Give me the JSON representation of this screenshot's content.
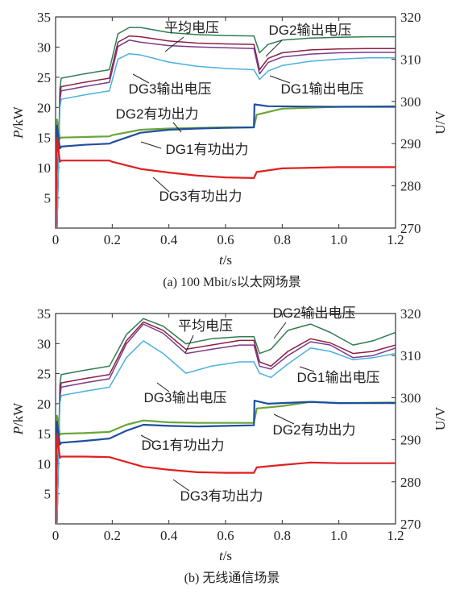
{
  "chart_data": [
    {
      "type": "line",
      "title": "",
      "caption": "(a) 100 Mbit/s以太网场景",
      "xlabel": "t/s",
      "xlabel_var": "t",
      "xlabel_unit": "/s",
      "ylabel_left": "P/kW",
      "ylabel_left_var": "P",
      "ylabel_left_unit": "/kW",
      "ylabel_right": "U/V",
      "xlim": [
        0,
        1.2
      ],
      "ylim_left": [
        0,
        35
      ],
      "ylim_right": [
        270,
        320
      ],
      "xticks": [
        "0",
        "0.2",
        "0.4",
        "0.6",
        "0.8",
        "1.0",
        "1.2"
      ],
      "yticks_left": [
        "5",
        "10",
        "15",
        "20",
        "25",
        "30",
        "35"
      ],
      "yticks_right": [
        "270",
        "280",
        "290",
        "300",
        "310",
        "320"
      ],
      "grid": false,
      "series": [
        {
          "name": "DG2输出电压",
          "axis": "right",
          "color": "#2e7d4f",
          "x": [
            0.005,
            0.015,
            0.02,
            0.1,
            0.19,
            0.22,
            0.26,
            0.3,
            0.4,
            0.5,
            0.6,
            0.7,
            0.72,
            0.75,
            0.8,
            0.9,
            1.0,
            1.1,
            1.2
          ],
          "y": [
            270,
            303,
            305.5,
            306.5,
            307.5,
            316,
            317.5,
            317.5,
            316.3,
            315.8,
            315.6,
            315.5,
            311.5,
            313.5,
            314.5,
            315,
            315.2,
            315.3,
            315.3
          ]
        },
        {
          "name": "平均电压",
          "axis": "right",
          "color": "#8c2040",
          "x": [
            0.005,
            0.015,
            0.02,
            0.1,
            0.19,
            0.22,
            0.26,
            0.3,
            0.4,
            0.5,
            0.6,
            0.7,
            0.72,
            0.75,
            0.8,
            0.9,
            1.0,
            1.1,
            1.2
          ],
          "y": [
            270,
            301,
            303.5,
            304.5,
            305.5,
            314,
            315.5,
            315.3,
            314.3,
            313.8,
            313.6,
            313.5,
            307.5,
            310.2,
            311.5,
            312.2,
            312.4,
            312.5,
            312.5
          ]
        },
        {
          "name": "DG1输出电压",
          "axis": "right",
          "color": "#7a3a8c",
          "x": [
            0.005,
            0.015,
            0.02,
            0.1,
            0.19,
            0.22,
            0.26,
            0.3,
            0.4,
            0.5,
            0.6,
            0.7,
            0.72,
            0.75,
            0.8,
            0.9,
            1.0,
            1.1,
            1.2
          ],
          "y": [
            270,
            300,
            302.5,
            303.5,
            304.5,
            313,
            314.5,
            314,
            313.2,
            312.9,
            312.7,
            312.5,
            306.5,
            309.2,
            310.5,
            311.2,
            311.5,
            311.6,
            311.6
          ]
        },
        {
          "name": "DG3输出电压",
          "axis": "right",
          "color": "#4ab0de",
          "x": [
            0.005,
            0.015,
            0.02,
            0.1,
            0.19,
            0.22,
            0.26,
            0.3,
            0.4,
            0.5,
            0.6,
            0.7,
            0.72,
            0.75,
            0.8,
            0.9,
            1.0,
            1.1,
            1.2
          ],
          "y": [
            270,
            298.5,
            300.5,
            301.5,
            302.5,
            310,
            311.3,
            311,
            309.3,
            308.3,
            307.8,
            307.5,
            305.2,
            307.2,
            308.5,
            309.5,
            310,
            310.3,
            310.3
          ]
        },
        {
          "name": "DG2有功出力",
          "axis": "left",
          "color": "#6aa53a",
          "x": [
            0,
            0.005,
            0.015,
            0.02,
            0.1,
            0.19,
            0.2,
            0.3,
            0.4,
            0.5,
            0.6,
            0.7,
            0.71,
            0.8,
            1.0,
            1.2
          ],
          "y": [
            0,
            18,
            14.8,
            15,
            15.1,
            15.2,
            15.4,
            16.3,
            16.5,
            16.6,
            16.7,
            16.7,
            18.8,
            19.8,
            20.1,
            20.2
          ]
        },
        {
          "name": "DG1有功出力",
          "axis": "left",
          "color": "#1e4f9e",
          "x": [
            0,
            0.005,
            0.015,
            0.02,
            0.1,
            0.19,
            0.2,
            0.3,
            0.4,
            0.5,
            0.6,
            0.7,
            0.702,
            0.75,
            1.0,
            1.2
          ],
          "y": [
            0,
            17,
            13.2,
            13.5,
            13.8,
            14,
            14.2,
            15.8,
            16.3,
            16.5,
            16.6,
            16.7,
            20.5,
            20.2,
            20.1,
            20.1
          ]
        },
        {
          "name": "DG3有功出力",
          "axis": "left",
          "color": "#e02020",
          "x": [
            0,
            0.005,
            0.015,
            0.02,
            0.1,
            0.19,
            0.2,
            0.3,
            0.4,
            0.5,
            0.6,
            0.7,
            0.71,
            0.8,
            1.0,
            1.2
          ],
          "y": [
            0,
            15,
            11,
            11.2,
            11.2,
            11.2,
            11,
            9.8,
            9.2,
            8.7,
            8.4,
            8.3,
            9.3,
            9.9,
            10.1,
            10.1
          ]
        }
      ],
      "annotations": [
        "平均电压",
        "DG2输出电压",
        "DG3输出电压",
        "DG1输出电压",
        "DG2有功出力",
        "DG1有功出力",
        "DG3有功出力"
      ]
    },
    {
      "type": "line",
      "title": "",
      "caption": "(b) 无线通信场景",
      "xlabel": "t/s",
      "xlabel_var": "t",
      "xlabel_unit": "/s",
      "ylabel_left": "P/kW",
      "ylabel_left_var": "P",
      "ylabel_left_unit": "/kW",
      "ylabel_right": "U/V",
      "xlim": [
        0,
        1.2
      ],
      "ylim_left": [
        0,
        35
      ],
      "ylim_right": [
        270,
        320
      ],
      "xticks": [
        "0",
        "0.2",
        "0.4",
        "0.6",
        "0.8",
        "1.0",
        "1.2"
      ],
      "yticks_left": [
        "5",
        "10",
        "15",
        "20",
        "25",
        "30",
        "35"
      ],
      "yticks_right": [
        "270",
        "280",
        "290",
        "300",
        "310",
        "320"
      ],
      "grid": false,
      "series": [
        {
          "name": "DG2输出电压",
          "axis": "right",
          "color": "#2e7d4f",
          "x": [
            0.005,
            0.015,
            0.02,
            0.1,
            0.19,
            0.25,
            0.31,
            0.38,
            0.46,
            0.55,
            0.65,
            0.7,
            0.72,
            0.76,
            0.82,
            0.9,
            0.97,
            1.05,
            1.12,
            1.2
          ],
          "y": [
            270,
            303,
            305.5,
            306.5,
            307.5,
            315,
            318.8,
            317,
            312.8,
            314,
            314.5,
            314.5,
            310.5,
            311.5,
            316,
            317.5,
            315.5,
            312.5,
            313.5,
            315.5
          ]
        },
        {
          "name": "平均电压",
          "axis": "right",
          "color": "#8c2040",
          "x": [
            0.005,
            0.015,
            0.02,
            0.1,
            0.19,
            0.25,
            0.31,
            0.38,
            0.46,
            0.55,
            0.65,
            0.7,
            0.72,
            0.76,
            0.82,
            0.9,
            0.97,
            1.05,
            1.12,
            1.2
          ],
          "y": [
            270,
            301,
            303.5,
            304.5,
            305.5,
            313.5,
            318,
            316,
            311.5,
            312.5,
            313.6,
            313.6,
            308.5,
            307.5,
            311,
            314,
            313,
            310.5,
            311,
            312.5
          ]
        },
        {
          "name": "DG1输出电压",
          "axis": "right",
          "color": "#7a3a8c",
          "x": [
            0.005,
            0.015,
            0.02,
            0.1,
            0.19,
            0.25,
            0.31,
            0.38,
            0.46,
            0.55,
            0.65,
            0.7,
            0.72,
            0.76,
            0.82,
            0.9,
            0.97,
            1.05,
            1.12,
            1.2
          ],
          "y": [
            270,
            300,
            302.5,
            303.5,
            304.5,
            312.8,
            317.5,
            315.3,
            310.5,
            311.5,
            312.5,
            312.5,
            307.5,
            306.8,
            310,
            313.3,
            312.5,
            309.5,
            310,
            311.8
          ]
        },
        {
          "name": "DG3输出电压",
          "axis": "right",
          "color": "#4ab0de",
          "x": [
            0.005,
            0.015,
            0.02,
            0.1,
            0.19,
            0.25,
            0.31,
            0.38,
            0.46,
            0.55,
            0.65,
            0.7,
            0.72,
            0.76,
            0.82,
            0.9,
            0.97,
            1.05,
            1.12,
            1.2
          ],
          "y": [
            270,
            298.5,
            300.5,
            301.5,
            302.5,
            309.5,
            313.5,
            310.5,
            305.8,
            307.5,
            308.5,
            308.5,
            305.8,
            304.8,
            308,
            311.8,
            311,
            309,
            309.5,
            310.5
          ]
        },
        {
          "name": "DG2有功出力",
          "axis": "left",
          "color": "#6aa53a",
          "x": [
            0,
            0.005,
            0.015,
            0.02,
            0.1,
            0.19,
            0.25,
            0.31,
            0.4,
            0.5,
            0.6,
            0.7,
            0.71,
            0.8,
            0.9,
            1.0,
            1.2
          ],
          "y": [
            0,
            18,
            14.8,
            15,
            15.1,
            15.3,
            16.5,
            17.2,
            16.9,
            16.8,
            16.8,
            16.8,
            19.2,
            19.6,
            20.3,
            20.1,
            20.2
          ]
        },
        {
          "name": "DG1有功出力",
          "axis": "left",
          "color": "#1e4f9e",
          "x": [
            0,
            0.005,
            0.015,
            0.02,
            0.1,
            0.19,
            0.25,
            0.31,
            0.4,
            0.5,
            0.6,
            0.7,
            0.702,
            0.75,
            0.9,
            1.0,
            1.2
          ],
          "y": [
            0,
            17,
            13.2,
            13.5,
            13.8,
            14.2,
            15.5,
            16.5,
            16.3,
            16.2,
            16.3,
            16.4,
            20.5,
            20,
            20.3,
            20.1,
            20.1
          ]
        },
        {
          "name": "DG3有功出力",
          "axis": "left",
          "color": "#e02020",
          "x": [
            0,
            0.005,
            0.015,
            0.02,
            0.1,
            0.19,
            0.25,
            0.31,
            0.4,
            0.5,
            0.6,
            0.7,
            0.71,
            0.8,
            0.9,
            1.0,
            1.2
          ],
          "y": [
            0,
            15,
            11,
            11.2,
            11.2,
            11.1,
            10.3,
            9.5,
            9,
            8.6,
            8.5,
            8.5,
            9.4,
            9.8,
            10.2,
            10.1,
            10.1
          ]
        }
      ],
      "annotations": [
        "平均电压",
        "DG2输出电压",
        "DG3输出电压",
        "DG1输出电压",
        "DG2有功出力",
        "DG1有功出力",
        "DG3有功出力"
      ]
    }
  ]
}
